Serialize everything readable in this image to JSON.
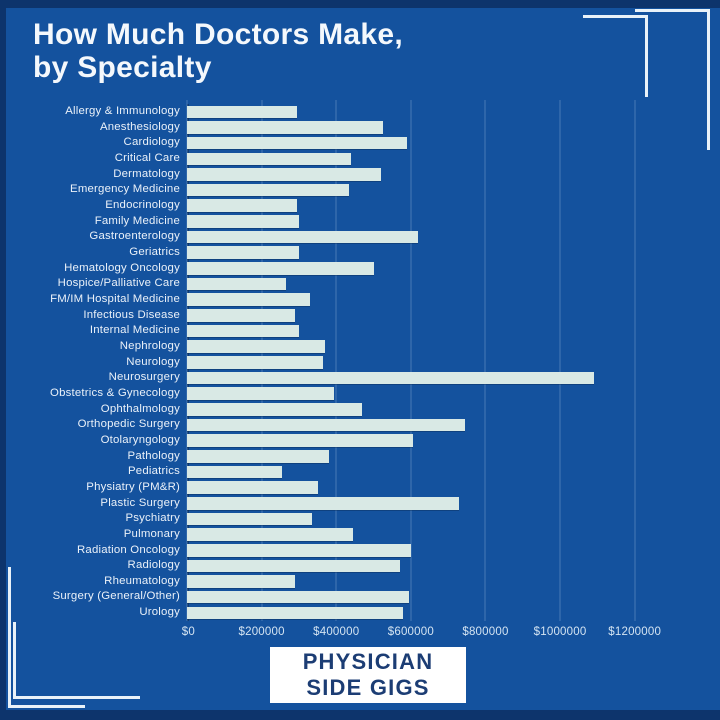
{
  "title": {
    "line1": "How Much Doctors Make,",
    "line2": "by Specialty"
  },
  "badge": {
    "line1": "PHYSICIAN",
    "line2": "SIDE GIGS"
  },
  "colors": {
    "background": "#14529E",
    "frame": "#0D346C",
    "bar": "#D9E9E5",
    "grid": "#9FC0DE",
    "title_text": "#F4F8FC",
    "label_text": "#EAF1F9",
    "tick_text": "#D4E4F2",
    "badge_bg": "#FFFFFF",
    "badge_text": "#1C3D74",
    "bracket": "#E9F2F9"
  },
  "chart_data": {
    "type": "bar",
    "orientation": "horizontal",
    "title": "How Much Doctors Make, by Specialty",
    "categories": [
      "Allergy & Immunology",
      "Anesthesiology",
      "Cardiology",
      "Critical Care",
      "Dermatology",
      "Emergency Medicine",
      "Endocrinology",
      "Family Medicine",
      "Gastroenterology",
      "Geriatrics",
      "Hematology Oncology",
      "Hospice/Palliative Care",
      "FM/IM Hospital Medicine",
      "Infectious Disease",
      "Internal Medicine",
      "Nephrology",
      "Neurology",
      "Neurosurgery",
      "Obstetrics & Gynecology",
      "Ophthalmology",
      "Orthopedic Surgery",
      "Otolaryngology",
      "Pathology",
      "Pediatrics",
      "Physiatry (PM&R)",
      "Plastic Surgery",
      "Psychiatry",
      "Pulmonary",
      "Radiation Oncology",
      "Radiology",
      "Rheumatology",
      "Surgery (General/Other)",
      "Urology"
    ],
    "values": [
      295000,
      525000,
      590000,
      440000,
      520000,
      435000,
      295000,
      300000,
      620000,
      300000,
      500000,
      265000,
      330000,
      290000,
      300000,
      370000,
      365000,
      1090000,
      395000,
      470000,
      745000,
      605000,
      380000,
      255000,
      350000,
      730000,
      335000,
      445000,
      600000,
      570000,
      290000,
      595000,
      580000
    ],
    "xlabel": "",
    "ylabel": "",
    "xlim": [
      0,
      1300000
    ],
    "x_ticks": [
      0,
      200000,
      400000,
      600000,
      800000,
      1000000,
      1200000
    ],
    "x_tick_labels": [
      "$0",
      "$200000",
      "$400000",
      "$600000",
      "$800000",
      "$1000000",
      "$1200000"
    ],
    "grid": true,
    "legend": false
  }
}
